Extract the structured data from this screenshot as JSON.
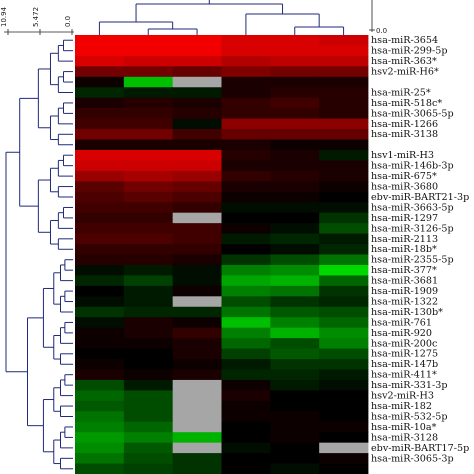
{
  "chart_data": {
    "type": "heatmap",
    "title": "",
    "xlabel": "",
    "ylabel": "",
    "color_scale": {
      "low": "#00ff00",
      "mid": "#000000",
      "high": "#ff0000",
      "missing": "#a6a6a6"
    },
    "row_dendrogram_axis": {
      "ticks": [
        "10.94",
        "5.472",
        "0.0"
      ]
    },
    "col_dendrogram_axis": {
      "ticks": [
        "0.0"
      ]
    },
    "rows": [
      "hsa-miR-3654",
      "hsa-miR-299-5p",
      "hsa-miR-363*",
      "hsv2-miR-H6*",
      "",
      "hsa-miR-25*",
      "hsa-miR-518c*",
      "hsa-miR-3065-5p",
      "hsa-miR-1266",
      "hsa-miR-3138",
      "",
      "hsv1-miR-H3",
      "hsa-miR-146b-3p",
      "hsa-miR-675*",
      "hsa-miR-3680",
      "ebv-miR-BART21-3p",
      "hsa-miR-3663-5p",
      "hsa-miR-1297",
      "hsa-miR-3126-5p",
      "hsa-miR-2113",
      "hsa-miR-18b*",
      "hsa-miR-2355-5p",
      "hsa-miR-377*",
      "hsa-miR-3681",
      "hsa-miR-1909",
      "hsa-miR-1322",
      "hsa-miR-130b*",
      "hsa-miR-761",
      "hsa-miR-920",
      "hsa-miR-200c",
      "hsa-miR-1275",
      "hsa-miR-147b",
      "hsa-miR-411*",
      "hsa-miR-331-3p",
      "hsv2-miR-H3",
      "hsa-miR-182",
      "hsa-miR-532-5p",
      "hsa-miR-10a*",
      "hsa-miR-3128",
      "ebv-miR-BART17-5p",
      "hsa-miR-3065-3p",
      ""
    ],
    "columns": [
      "",
      "",
      "",
      "",
      "",
      ""
    ],
    "values": [
      [
        0.95,
        0.95,
        0.95,
        0.85,
        0.85,
        0.8
      ],
      [
        0.95,
        0.95,
        0.95,
        0.85,
        0.85,
        0.85
      ],
      [
        0.85,
        0.8,
        0.8,
        0.7,
        0.75,
        0.75
      ],
      [
        0.45,
        0.45,
        0.4,
        0.5,
        0.45,
        0.45
      ],
      [
        0.05,
        -0.75,
        null,
        0.1,
        0.1,
        0.1
      ],
      [
        -0.15,
        -0.1,
        -0.1,
        0.1,
        0.15,
        0.15
      ],
      [
        0.1,
        0.15,
        0.1,
        0.2,
        0.25,
        0.15
      ],
      [
        0.2,
        0.2,
        0.15,
        0.2,
        0.2,
        0.15
      ],
      [
        0.25,
        0.25,
        -0.05,
        0.55,
        0.55,
        0.55
      ],
      [
        0.45,
        0.45,
        0.25,
        0.4,
        0.4,
        0.4
      ],
      [
        0.1,
        0.1,
        0.1,
        0.1,
        0.05,
        0.05
      ],
      [
        0.85,
        0.85,
        0.85,
        0.15,
        0.1,
        -0.1
      ],
      [
        0.8,
        0.8,
        0.8,
        0.1,
        0.1,
        0.1
      ],
      [
        0.6,
        0.65,
        0.6,
        0.2,
        0.15,
        0.1
      ],
      [
        0.35,
        0.45,
        0.4,
        0.1,
        0.1,
        0.05
      ],
      [
        0.3,
        0.35,
        0.3,
        0.05,
        0.05,
        0.0
      ],
      [
        0.25,
        0.25,
        0.2,
        -0.05,
        -0.05,
        -0.05
      ],
      [
        0.2,
        0.2,
        null,
        0.0,
        0.0,
        -0.2
      ],
      [
        0.25,
        0.25,
        0.25,
        0.05,
        -0.05,
        -0.3
      ],
      [
        0.3,
        0.3,
        0.25,
        -0.1,
        -0.15,
        -0.1
      ],
      [
        0.2,
        0.2,
        0.2,
        0.0,
        -0.05,
        -0.15
      ],
      [
        0.15,
        0.15,
        0.1,
        -0.2,
        -0.3,
        -0.45
      ],
      [
        -0.05,
        -0.1,
        -0.05,
        -0.5,
        -0.55,
        -0.85
      ],
      [
        -0.15,
        -0.25,
        -0.05,
        -0.65,
        -0.7,
        -0.4
      ],
      [
        0.0,
        -0.1,
        0.05,
        -0.5,
        -0.45,
        -0.2
      ],
      [
        -0.05,
        -0.1,
        null,
        -0.3,
        -0.2,
        -0.15
      ],
      [
        -0.2,
        -0.15,
        -0.15,
        -0.45,
        -0.35,
        -0.3
      ],
      [
        -0.05,
        0.1,
        0.05,
        -0.75,
        -0.5,
        -0.4
      ],
      [
        0.05,
        0.1,
        0.2,
        -0.5,
        -0.7,
        -0.55
      ],
      [
        0.05,
        0.05,
        0.1,
        -0.4,
        -0.3,
        -0.5
      ],
      [
        0.0,
        0.0,
        0.1,
        -0.25,
        -0.35,
        -0.3
      ],
      [
        0.05,
        0.0,
        0.05,
        -0.1,
        -0.2,
        -0.2
      ],
      [
        0.1,
        0.05,
        0.1,
        -0.15,
        -0.15,
        -0.1
      ],
      [
        -0.3,
        -0.1,
        null,
        0.05,
        -0.1,
        -0.05
      ],
      [
        -0.4,
        -0.3,
        null,
        0.1,
        0.0,
        0.0
      ],
      [
        -0.35,
        -0.3,
        null,
        0.05,
        0.0,
        0.0
      ],
      [
        -0.45,
        -0.3,
        null,
        0.05,
        0.05,
        0.0
      ],
      [
        -0.5,
        -0.4,
        null,
        0.0,
        0.05,
        0.05
      ],
      [
        -0.6,
        -0.5,
        -0.7,
        0.0,
        0.05,
        0.0
      ],
      [
        -0.55,
        -0.35,
        null,
        -0.05,
        0.0,
        null
      ],
      [
        -0.45,
        -0.3,
        -0.2,
        0.0,
        0.0,
        0.05
      ],
      [
        -0.3,
        -0.25,
        -0.2,
        0.0,
        -0.05,
        0.0
      ]
    ]
  }
}
